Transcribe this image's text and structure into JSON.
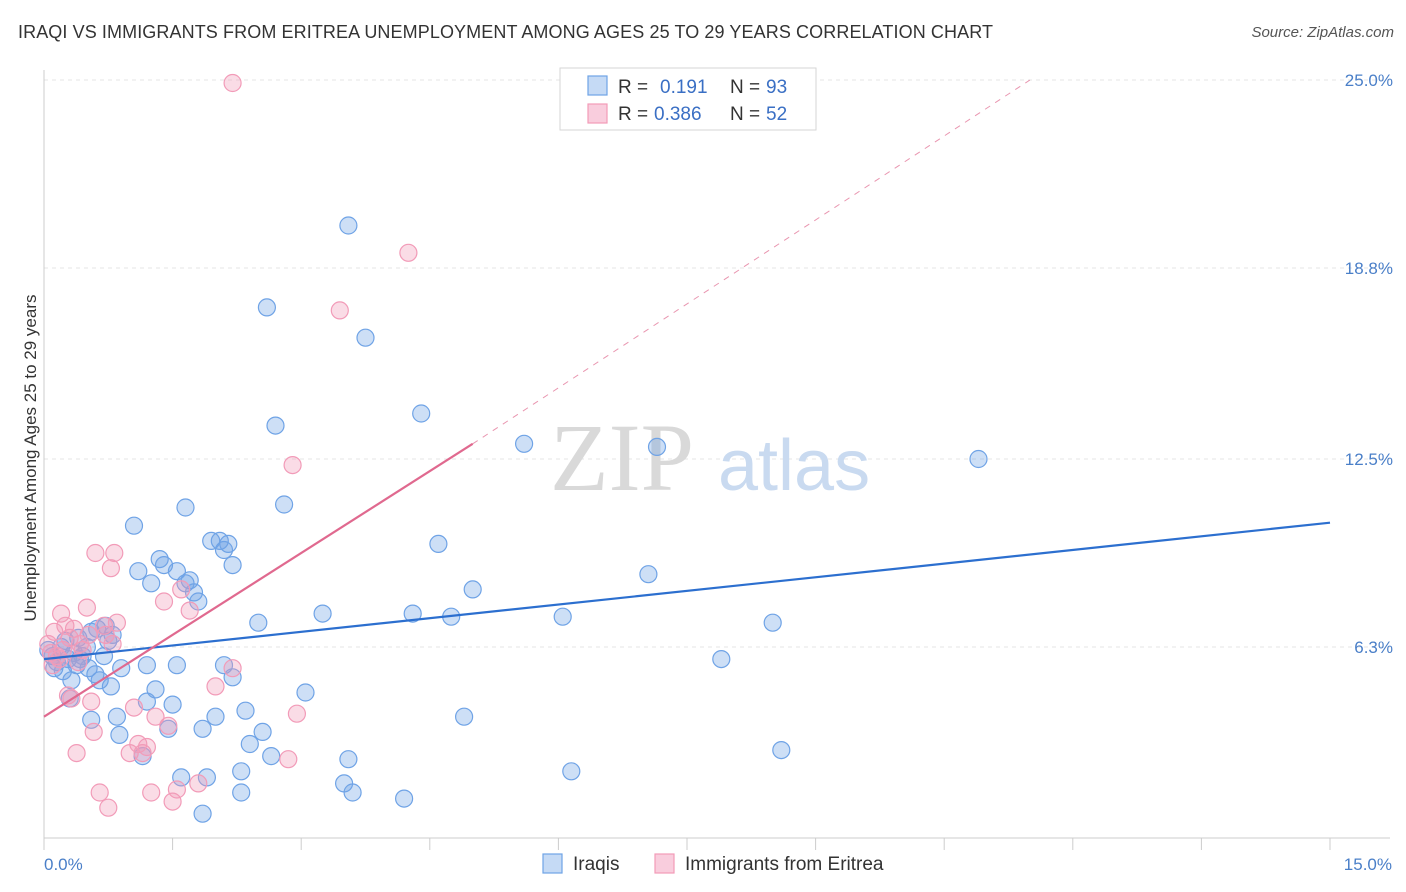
{
  "header": {
    "title": "IRAQI VS IMMIGRANTS FROM ERITREA UNEMPLOYMENT AMONG AGES 25 TO 29 YEARS CORRELATION CHART",
    "source": "Source: ZipAtlas.com"
  },
  "watermark": {
    "zip": "ZIP",
    "atlas": "atlas"
  },
  "legend": {
    "rows": [
      {
        "r_label": "R =",
        "r_value": "0.191",
        "n_label": "N =",
        "n_value": "93"
      },
      {
        "r_label": "R =",
        "r_value": "0.386",
        "n_label": "N =",
        "n_value": "52"
      }
    ]
  },
  "chart_data": {
    "type": "scatter",
    "title": "IRAQI VS IMMIGRANTS FROM ERITREA UNEMPLOYMENT AMONG AGES 25 TO 29 YEARS CORRELATION CHART",
    "xlabel": "",
    "ylabel": "Unemployment Among Ages 25 to 29 years",
    "xlim": [
      0,
      15
    ],
    "ylim": [
      0,
      25
    ],
    "x_tick_labels": [
      "0.0%",
      "15.0%"
    ],
    "y_ticks": [
      6.3,
      12.5,
      18.8,
      25.0
    ],
    "y_tick_labels": [
      "6.3%",
      "12.5%",
      "18.8%",
      "25.0%"
    ],
    "grid": true,
    "legend_position": "top-center",
    "colors": {
      "iraqis": "#6fa3e6",
      "iraqis_line": "#2c6fcf",
      "eritrea": "#f29bb8",
      "eritrea_line": "#e0698f"
    },
    "series": [
      {
        "name": "Iraqis",
        "r": 0.191,
        "n": 93,
        "trend": {
          "x": [
            0,
            15
          ],
          "y": [
            5.9,
            10.4
          ],
          "style": "solid"
        },
        "points": [
          [
            0.05,
            6.2
          ],
          [
            0.1,
            6.0
          ],
          [
            0.12,
            5.6
          ],
          [
            0.15,
            5.8
          ],
          [
            0.2,
            6.3
          ],
          [
            0.22,
            5.5
          ],
          [
            0.25,
            6.5
          ],
          [
            0.28,
            5.9
          ],
          [
            0.3,
            4.6
          ],
          [
            0.32,
            5.2
          ],
          [
            0.35,
            6.1
          ],
          [
            0.38,
            5.7
          ],
          [
            0.4,
            6.6
          ],
          [
            0.42,
            5.9
          ],
          [
            0.45,
            6.0
          ],
          [
            0.5,
            6.3
          ],
          [
            0.52,
            5.6
          ],
          [
            0.55,
            6.8
          ],
          [
            0.6,
            5.4
          ],
          [
            0.62,
            6.9
          ],
          [
            0.65,
            5.2
          ],
          [
            0.7,
            6.0
          ],
          [
            0.72,
            7.0
          ],
          [
            0.75,
            6.5
          ],
          [
            0.78,
            5.0
          ],
          [
            0.8,
            6.7
          ],
          [
            0.85,
            4.0
          ],
          [
            0.88,
            3.4
          ],
          [
            0.9,
            5.6
          ],
          [
            1.05,
            10.3
          ],
          [
            1.1,
            8.8
          ],
          [
            1.15,
            2.7
          ],
          [
            1.2,
            5.7
          ],
          [
            1.25,
            8.4
          ],
          [
            1.3,
            4.9
          ],
          [
            1.35,
            9.2
          ],
          [
            1.4,
            9.0
          ],
          [
            1.45,
            3.6
          ],
          [
            1.5,
            4.4
          ],
          [
            1.55,
            5.7
          ],
          [
            1.6,
            2.0
          ],
          [
            1.65,
            8.4
          ],
          [
            1.65,
            10.9
          ],
          [
            1.7,
            8.5
          ],
          [
            1.75,
            8.1
          ],
          [
            1.8,
            7.8
          ],
          [
            1.85,
            3.6
          ],
          [
            1.85,
            0.8
          ],
          [
            1.9,
            2.0
          ],
          [
            1.95,
            9.8
          ],
          [
            2.0,
            4.0
          ],
          [
            2.05,
            9.8
          ],
          [
            2.1,
            9.5
          ],
          [
            2.1,
            5.7
          ],
          [
            2.15,
            9.7
          ],
          [
            2.2,
            9.0
          ],
          [
            2.2,
            5.3
          ],
          [
            2.3,
            1.5
          ],
          [
            2.3,
            2.2
          ],
          [
            2.35,
            4.2
          ],
          [
            2.4,
            3.1
          ],
          [
            2.5,
            7.1
          ],
          [
            2.55,
            3.5
          ],
          [
            2.6,
            17.5
          ],
          [
            2.65,
            2.7
          ],
          [
            2.7,
            13.6
          ],
          [
            2.8,
            11.0
          ],
          [
            3.05,
            4.8
          ],
          [
            3.25,
            7.4
          ],
          [
            3.5,
            1.8
          ],
          [
            3.55,
            20.2
          ],
          [
            3.55,
            2.6
          ],
          [
            3.6,
            1.5
          ],
          [
            3.75,
            16.5
          ],
          [
            4.2,
            1.3
          ],
          [
            4.3,
            7.4
          ],
          [
            4.4,
            14.0
          ],
          [
            4.6,
            9.7
          ],
          [
            4.75,
            7.3
          ],
          [
            4.9,
            4.0
          ],
          [
            5.0,
            8.2
          ],
          [
            5.6,
            13.0
          ],
          [
            6.05,
            7.3
          ],
          [
            6.15,
            2.2
          ],
          [
            7.05,
            8.7
          ],
          [
            7.15,
            12.9
          ],
          [
            7.9,
            5.9
          ],
          [
            8.5,
            7.1
          ],
          [
            8.6,
            2.9
          ],
          [
            10.9,
            12.5
          ],
          [
            0.55,
            3.9
          ],
          [
            1.2,
            4.5
          ],
          [
            1.55,
            8.8
          ]
        ]
      },
      {
        "name": "Immigrants from Eritrea",
        "r": 0.386,
        "n": 52,
        "trend": {
          "x": [
            0,
            5.0
          ],
          "y": [
            4.0,
            13.0
          ],
          "style": "solid",
          "extended": {
            "x": [
              5.0,
              11.5
            ],
            "y": [
              13.0,
              25.0
            ],
            "style": "dashed"
          }
        },
        "points": [
          [
            0.05,
            6.4
          ],
          [
            0.08,
            6.1
          ],
          [
            0.1,
            5.7
          ],
          [
            0.12,
            6.8
          ],
          [
            0.15,
            6.0
          ],
          [
            0.18,
            5.9
          ],
          [
            0.2,
            7.4
          ],
          [
            0.22,
            6.2
          ],
          [
            0.25,
            7.0
          ],
          [
            0.28,
            4.7
          ],
          [
            0.3,
            6.6
          ],
          [
            0.32,
            4.6
          ],
          [
            0.35,
            6.9
          ],
          [
            0.38,
            2.8
          ],
          [
            0.4,
            5.8
          ],
          [
            0.42,
            6.4
          ],
          [
            0.45,
            6.2
          ],
          [
            0.5,
            7.6
          ],
          [
            0.52,
            6.7
          ],
          [
            0.55,
            4.5
          ],
          [
            0.58,
            3.5
          ],
          [
            0.6,
            9.4
          ],
          [
            0.65,
            1.5
          ],
          [
            0.7,
            7.0
          ],
          [
            0.72,
            6.7
          ],
          [
            0.75,
            1.0
          ],
          [
            0.78,
            8.9
          ],
          [
            0.8,
            6.4
          ],
          [
            0.82,
            9.4
          ],
          [
            0.85,
            7.1
          ],
          [
            1.0,
            2.8
          ],
          [
            1.05,
            4.3
          ],
          [
            1.1,
            3.1
          ],
          [
            1.15,
            2.8
          ],
          [
            1.2,
            3.0
          ],
          [
            1.25,
            1.5
          ],
          [
            1.3,
            4.0
          ],
          [
            1.4,
            7.8
          ],
          [
            1.45,
            3.7
          ],
          [
            1.5,
            1.2
          ],
          [
            1.55,
            1.6
          ],
          [
            1.6,
            8.2
          ],
          [
            1.7,
            7.5
          ],
          [
            1.8,
            1.8
          ],
          [
            2.0,
            5.0
          ],
          [
            2.2,
            5.6
          ],
          [
            2.85,
            2.6
          ],
          [
            2.9,
            12.3
          ],
          [
            2.95,
            4.1
          ],
          [
            3.45,
            17.4
          ],
          [
            4.25,
            19.3
          ],
          [
            2.2,
            24.9
          ]
        ]
      }
    ]
  },
  "bottom_legend": {
    "items": [
      {
        "label": "Iraqis"
      },
      {
        "label": "Immigrants from Eritrea"
      }
    ]
  }
}
